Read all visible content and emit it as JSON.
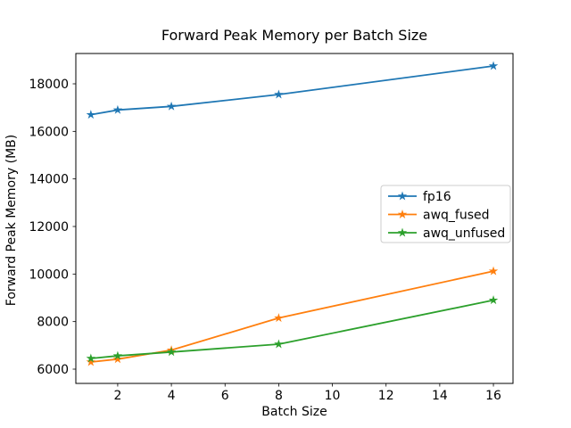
{
  "figure": {
    "title": "Forward Peak Memory per Batch Size",
    "xlabel": "Batch Size",
    "ylabel": "Forward Peak Memory (MB)"
  },
  "chart_data": {
    "type": "line",
    "title": "Forward Peak Memory per Batch Size",
    "xlabel": "Batch Size",
    "ylabel": "Forward Peak Memory (MB)",
    "x": [
      1,
      2,
      4,
      8,
      16
    ],
    "series": [
      {
        "name": "fp16",
        "color": "#1f77b4",
        "marker": "star",
        "values": [
          16700,
          16900,
          17050,
          17550,
          18750
        ]
      },
      {
        "name": "awq_fused",
        "color": "#ff7f0e",
        "marker": "star",
        "values": [
          6300,
          6420,
          6800,
          8150,
          10120
        ]
      },
      {
        "name": "awq_unfused",
        "color": "#2ca02c",
        "marker": "star",
        "values": [
          6450,
          6560,
          6720,
          7050,
          8900
        ]
      }
    ],
    "xticks": [
      2,
      4,
      6,
      8,
      10,
      12,
      14,
      16
    ],
    "yticks": [
      6000,
      8000,
      10000,
      12000,
      14000,
      16000,
      18000
    ],
    "xlim": [
      0.44,
      16.73
    ],
    "ylim": [
      5400,
      19275
    ],
    "grid": false,
    "legend": {
      "position": "center right",
      "entries": [
        "fp16",
        "awq_fused",
        "awq_unfused"
      ]
    }
  },
  "colors": {
    "background": "#ffffff",
    "spine": "#000000",
    "tick_text": "#000000",
    "legend_border": "#cccccc",
    "legend_fill": "#ffffff"
  }
}
